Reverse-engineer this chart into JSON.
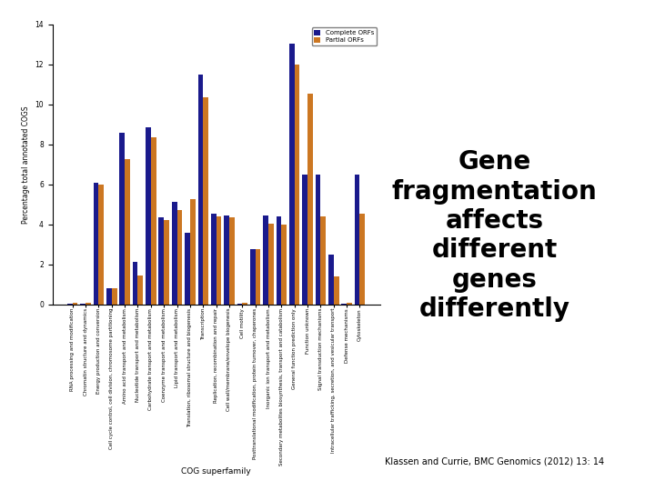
{
  "categories": [
    "RNA processing and modification",
    "Chromatin structure and dynamics",
    "Energy production and conversion",
    "Cell cycle control, cell division, chromosome partitioning",
    "Amino acid transport and metabolism",
    "Nucleotide transport and metabolism",
    "Carbohydrate transport and metabolism",
    "Coenzyme transport and metabolism",
    "Lipid transport and metabolism",
    "Translation, ribosomal structure and biogenesis",
    "Transcription",
    "Replication, recombination and repair",
    "Cell wall/membrane/envelope biogenesis",
    "Cell motility",
    "Posttranslational modification, protein turnover, chaperones",
    "Inorganic ion transport and metabolism",
    "Secondary metabolites biosynthesis, transport and catabolism",
    "General function prediction only",
    "Function unknown",
    "Signal transduction mechanisms",
    "Intracellular trafficking, secretion, and vesicular transport",
    "Defense mechanisms",
    "Cytoskeleton"
  ],
  "complete_orfs": [
    0.05,
    0.05,
    6.1,
    0.8,
    8.6,
    2.15,
    8.85,
    4.35,
    5.15,
    3.6,
    11.5,
    4.55,
    4.45,
    0.05,
    2.75,
    4.45,
    4.4,
    13.05,
    6.5,
    6.5,
    2.5,
    0.05,
    6.5
  ],
  "partial_orfs": [
    0.1,
    0.1,
    6.0,
    0.8,
    7.25,
    1.45,
    8.35,
    4.2,
    4.7,
    5.25,
    10.35,
    4.4,
    4.35,
    0.1,
    2.75,
    4.05,
    4.0,
    12.0,
    10.55,
    4.4,
    1.4,
    0.1,
    4.55
  ],
  "complete_color": "#1a1a8c",
  "partial_color": "#cc7722",
  "ylabel": "Percentage total annotated COGS",
  "xlabel": "COG superfamily",
  "ylim": [
    0,
    14
  ],
  "yticks": [
    0,
    2,
    4,
    6,
    8,
    10,
    12,
    14
  ],
  "complete_label": "Complete ORFs",
  "partial_label": "Partial ORFs",
  "title": "Gene\nfragmentation\naffects\ndifferent\ngenes\ndifferently",
  "citation": "Klassen and Currie, BMC Genomics (2012) 13: 14",
  "bar_width": 0.4
}
